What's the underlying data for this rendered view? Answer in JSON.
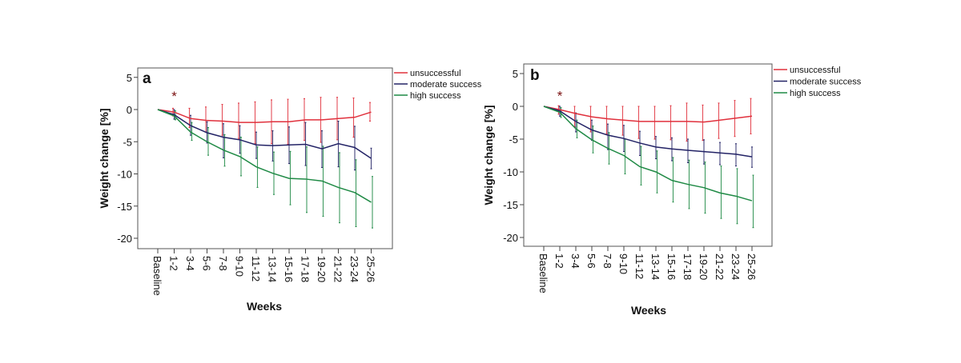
{
  "chart_data": [
    {
      "type": "line",
      "panel_label": "a",
      "xlabel": "Weeks",
      "ylabel": "Weight change [%]",
      "ylim": [
        -21.5,
        6.5
      ],
      "yticks": [
        5,
        0,
        -5,
        -10,
        -15,
        -20
      ],
      "ytick_labels": [
        "5",
        "0",
        "-5",
        "-10",
        "-15",
        "-20"
      ],
      "categories": [
        "Baseline",
        "1-2",
        "3-4",
        "5-6",
        "7-8",
        "9-10",
        "11-12",
        "13-14",
        "15-16",
        "17-18",
        "19-20",
        "21-22",
        "23-24",
        "25-26"
      ],
      "annotation": {
        "text": "*",
        "category": "1-2",
        "y": 2.5
      },
      "legend": {
        "position": "right-top",
        "entries": [
          "unsuccessful",
          "moderate success",
          "high success"
        ]
      },
      "grid": false,
      "series": [
        {
          "name": "unsuccessful",
          "color": "#e0303c",
          "values": [
            0,
            -0.4,
            -1.4,
            -1.7,
            -1.8,
            -2.0,
            -2.0,
            -1.9,
            -1.9,
            -1.6,
            -1.6,
            -1.4,
            -1.2,
            -0.4
          ],
          "error_upper": [
            null,
            0.2,
            0.2,
            0.4,
            0.8,
            1.0,
            1.2,
            1.5,
            1.6,
            1.7,
            1.9,
            1.9,
            1.8,
            1.1
          ],
          "error_lower": [
            null,
            -1.0,
            -2.8,
            -3.5,
            -4.0,
            -4.5,
            -5.3,
            -5.3,
            -5.4,
            -4.8,
            -5.1,
            -4.7,
            -4.3,
            -1.8
          ]
        },
        {
          "name": "moderate success",
          "color": "#232366",
          "values": [
            0,
            -0.8,
            -2.5,
            -3.6,
            -4.3,
            -4.7,
            -5.5,
            -5.6,
            -5.5,
            -5.4,
            -6.1,
            -5.3,
            -5.9,
            -7.6
          ],
          "error_upper": [
            null,
            0.0,
            -0.9,
            -1.9,
            -2.2,
            -2.5,
            -3.5,
            -3.3,
            -2.7,
            -2.0,
            -3.3,
            -1.8,
            -2.6,
            -6.0
          ],
          "error_lower": [
            null,
            -1.5,
            -4.0,
            -5.2,
            -7.5,
            -6.8,
            -7.6,
            -8.0,
            -8.4,
            -8.7,
            -9.0,
            -8.9,
            -9.4,
            -9.2
          ]
        },
        {
          "name": "high success",
          "color": "#1f8a45",
          "values": [
            0,
            -1.0,
            -3.5,
            -5.0,
            -6.3,
            -7.3,
            -8.9,
            -9.9,
            -10.7,
            -10.8,
            -11.1,
            -12.1,
            -12.9,
            -14.4
          ],
          "error_upper": [
            null,
            -0.2,
            -2.0,
            -2.8,
            -3.9,
            -4.3,
            -5.8,
            -6.6,
            -6.5,
            -5.8,
            -5.7,
            -6.7,
            -7.8,
            -10.4
          ],
          "error_lower": [
            null,
            -1.6,
            -4.8,
            -7.1,
            -8.8,
            -10.3,
            -12.1,
            -13.2,
            -14.8,
            -16.0,
            -16.6,
            -17.6,
            -18.2,
            -18.4
          ]
        }
      ]
    },
    {
      "type": "line",
      "panel_label": "b",
      "xlabel": "Weeks",
      "ylabel": "Weight change [%]",
      "ylim": [
        -21.5,
        6.5
      ],
      "yticks": [
        5,
        0,
        -5,
        -10,
        -15,
        -20
      ],
      "ytick_labels": [
        "5",
        "0",
        "-5",
        "-10",
        "-15",
        "-20"
      ],
      "categories": [
        "Baseline",
        "1-2",
        "3-4",
        "5-6",
        "7-8",
        "9-10",
        "11-12",
        "13-14",
        "15-16",
        "17-18",
        "19-20",
        "21-22",
        "23-24",
        "25-26"
      ],
      "annotation": {
        "text": "*",
        "category": "1-2",
        "y": 2.0
      },
      "legend": {
        "position": "right-top",
        "entries": [
          "unsuccessful",
          "moderate success",
          "high success"
        ]
      },
      "grid": false,
      "series": [
        {
          "name": "unsuccessful",
          "color": "#e0303c",
          "values": [
            0,
            -0.5,
            -1.1,
            -1.6,
            -1.9,
            -2.1,
            -2.3,
            -2.3,
            -2.3,
            -2.3,
            -2.4,
            -2.1,
            -1.8,
            -1.5
          ],
          "error_upper": [
            null,
            0.1,
            0.0,
            0.0,
            0.0,
            0.0,
            0.0,
            0.0,
            0.1,
            0.5,
            0.2,
            0.5,
            0.9,
            1.2
          ],
          "error_lower": [
            null,
            -1.2,
            -3.1,
            -3.9,
            -4.2,
            -4.4,
            -4.9,
            -5.0,
            -5.1,
            -5.3,
            -5.2,
            -4.9,
            -4.6,
            -4.2
          ]
        },
        {
          "name": "moderate success",
          "color": "#232366",
          "values": [
            0,
            -0.7,
            -2.3,
            -3.6,
            -4.4,
            -4.9,
            -5.6,
            -6.2,
            -6.5,
            -6.7,
            -6.9,
            -7.1,
            -7.3,
            -7.7
          ],
          "error_upper": [
            null,
            0.0,
            -1.0,
            -2.1,
            -2.7,
            -2.9,
            -3.8,
            -4.6,
            -4.8,
            -5.0,
            -5.1,
            -5.5,
            -5.7,
            -6.2
          ],
          "error_lower": [
            null,
            -1.5,
            -3.9,
            -5.2,
            -6.6,
            -6.9,
            -7.5,
            -8.0,
            -8.3,
            -8.6,
            -8.8,
            -8.9,
            -9.1,
            -9.3
          ]
        },
        {
          "name": "high success",
          "color": "#1f8a45",
          "values": [
            0,
            -0.9,
            -3.4,
            -5.1,
            -6.4,
            -7.5,
            -9.2,
            -10.0,
            -11.3,
            -11.9,
            -12.4,
            -13.2,
            -13.7,
            -14.4
          ],
          "error_upper": [
            null,
            -0.2,
            -2.1,
            -3.0,
            -4.0,
            -5.0,
            -6.1,
            -6.8,
            -7.8,
            -8.2,
            -8.5,
            -9.1,
            -9.5,
            -10.5
          ],
          "error_lower": [
            null,
            -1.7,
            -4.8,
            -7.1,
            -8.8,
            -10.3,
            -12.0,
            -13.2,
            -14.6,
            -15.6,
            -16.3,
            -17.1,
            -17.9,
            -18.5
          ]
        }
      ]
    }
  ]
}
